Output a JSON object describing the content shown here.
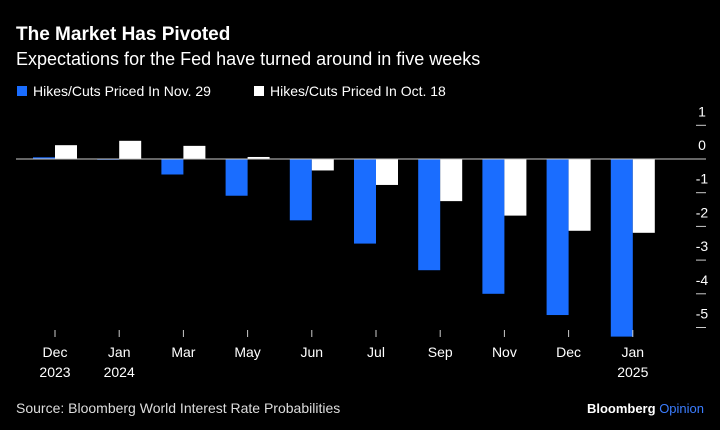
{
  "chart_data": {
    "type": "bar",
    "title": "The Market Has Pivoted",
    "subtitle": "Expectations for the Fed have turned around in five weeks",
    "categories": [
      [
        "Dec",
        "2023"
      ],
      [
        "Jan",
        "2024"
      ],
      [
        "Mar",
        ""
      ],
      [
        "May",
        ""
      ],
      [
        "Jun",
        ""
      ],
      [
        "Jul",
        ""
      ],
      [
        "Sep",
        ""
      ],
      [
        "Nov",
        ""
      ],
      [
        "Dec",
        ""
      ],
      [
        "Jan",
        "2025"
      ]
    ],
    "series": [
      {
        "name": "Hikes/Cuts Priced In Nov. 29",
        "color": "#1a6dff",
        "values": [
          0.05,
          -0.01,
          -0.46,
          -1.09,
          -1.82,
          -2.51,
          -3.3,
          -4.0,
          -4.63,
          -5.27
        ]
      },
      {
        "name": "Hikes/Cuts Priced In Oct. 18",
        "color": "#ffffff",
        "values": [
          0.41,
          0.54,
          0.39,
          0.06,
          -0.34,
          -0.77,
          -1.25,
          -1.68,
          -2.13,
          -2.19
        ]
      }
    ],
    "yticks": [
      "1",
      "0",
      "-1",
      "-2",
      "-3",
      "-4",
      "-5"
    ],
    "ytick_values": [
      1,
      0,
      -1,
      -2,
      -3,
      -4,
      -5
    ],
    "ylim": [
      -5.3,
      1
    ],
    "y_axis_side": "right",
    "legend_placement": "top-left",
    "grid": false
  },
  "footer": {
    "source": "Source: Bloomberg World Interest Rate Probabilities",
    "brand": "Bloomberg",
    "brand_accent": "Opinion",
    "accent_color": "#3b7dff"
  }
}
